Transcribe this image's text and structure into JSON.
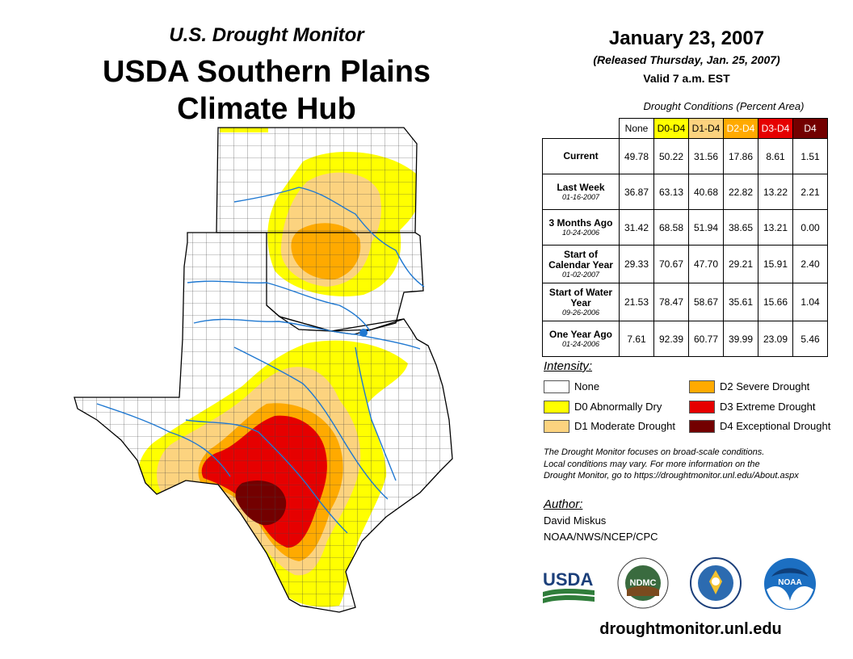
{
  "titles": {
    "subtitle": "U.S. Drought Monitor",
    "main_line1": "USDA Southern Plains",
    "main_line2": "Climate Hub"
  },
  "header": {
    "date": "January 23, 2007",
    "released": "(Released Thursday, Jan. 25, 2007)",
    "valid": "Valid 7 a.m. EST"
  },
  "table": {
    "caption": "Drought Conditions (Percent Area)",
    "columns": [
      {
        "label": "None",
        "color": "#ffffff",
        "text_color": "#000000"
      },
      {
        "label": "D0-D4",
        "color": "#ffff00",
        "text_color": "#000000"
      },
      {
        "label": "D1-D4",
        "color": "#fcd37f",
        "text_color": "#000000"
      },
      {
        "label": "D2-D4",
        "color": "#ffaa00",
        "text_color": "#ffffff"
      },
      {
        "label": "D3-D4",
        "color": "#e60000",
        "text_color": "#ffffff"
      },
      {
        "label": "D4",
        "color": "#730000",
        "text_color": "#ffffff"
      }
    ],
    "rows": [
      {
        "label": "Current",
        "sub": "",
        "values": [
          "49.78",
          "50.22",
          "31.56",
          "17.86",
          "8.61",
          "1.51"
        ]
      },
      {
        "label": "Last Week",
        "sub": "01-16-2007",
        "values": [
          "36.87",
          "63.13",
          "40.68",
          "22.82",
          "13.22",
          "2.21"
        ]
      },
      {
        "label": "3 Months Ago",
        "sub": "10-24-2006",
        "values": [
          "31.42",
          "68.58",
          "51.94",
          "38.65",
          "13.21",
          "0.00"
        ]
      },
      {
        "label": "Start of Calendar Year",
        "sub": "01-02-2007",
        "values": [
          "29.33",
          "70.67",
          "47.70",
          "29.21",
          "15.91",
          "2.40"
        ]
      },
      {
        "label": "Start of Water Year",
        "sub": "09-26-2006",
        "values": [
          "21.53",
          "78.47",
          "58.67",
          "35.61",
          "15.66",
          "1.04"
        ]
      },
      {
        "label": "One Year Ago",
        "sub": "01-24-2006",
        "values": [
          "7.61",
          "92.39",
          "60.77",
          "39.99",
          "23.09",
          "5.46"
        ]
      }
    ]
  },
  "legend": {
    "title": "Intensity:",
    "items": [
      {
        "label": "None",
        "color": "#ffffff"
      },
      {
        "label": "D0 Abnormally Dry",
        "color": "#ffff00"
      },
      {
        "label": "D1 Moderate Drought",
        "color": "#fcd37f"
      },
      {
        "label": "D2 Severe Drought",
        "color": "#ffaa00"
      },
      {
        "label": "D3 Extreme Drought",
        "color": "#e60000"
      },
      {
        "label": "D4 Exceptional Drought",
        "color": "#730000"
      }
    ]
  },
  "note": {
    "line1": "The Drought Monitor focuses on broad-scale conditions.",
    "line2": "Local conditions may vary. For more information on the",
    "line3": "Drought Monitor, go to https://droughtmonitor.unl.edu/About.aspx"
  },
  "author": {
    "title": "Author:",
    "name": "David Miskus",
    "org": "NOAA/NWS/NCEP/CPC"
  },
  "logos": {
    "usda": "USDA",
    "ndmc": "NDMC",
    "noaa": "NOAA"
  },
  "footer_url": "droughtmonitor.unl.edu"
}
